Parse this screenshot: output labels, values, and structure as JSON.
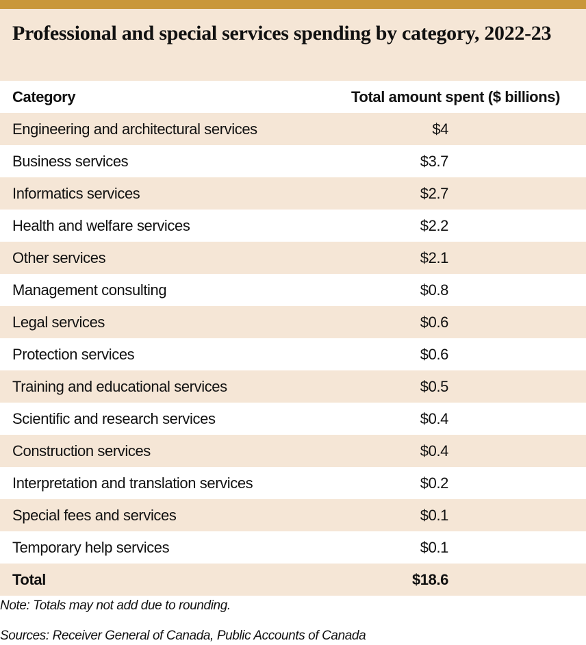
{
  "title": "Professional and special services spending by category, 2022-23",
  "colors": {
    "accent_bar": "#c9973a",
    "shade": "#f5e6d6"
  },
  "table": {
    "headers": [
      "Category",
      "Total amount spent ($ billions)"
    ],
    "rows": [
      {
        "category": "Engineering and architectural services",
        "value": "$4"
      },
      {
        "category": "Business services",
        "value": "$3.7"
      },
      {
        "category": "Informatics services",
        "value": "$2.7"
      },
      {
        "category": "Health and welfare services",
        "value": "$2.2"
      },
      {
        "category": "Other services",
        "value": "$2.1"
      },
      {
        "category": "Management consulting",
        "value": "$0.8"
      },
      {
        "category": "Legal services",
        "value": "$0.6"
      },
      {
        "category": "Protection services",
        "value": "$0.6"
      },
      {
        "category": "Training and educational services",
        "value": "$0.5"
      },
      {
        "category": "Scientific and research services",
        "value": "$0.4"
      },
      {
        "category": "Construction services",
        "value": "$0.4"
      },
      {
        "category": "Interpretation and translation services",
        "value": "$0.2"
      },
      {
        "category": "Special fees and services",
        "value": "$0.1"
      },
      {
        "category": "Temporary help services",
        "value": "$0.1"
      }
    ],
    "total": {
      "category": "Total",
      "value": "$18.6"
    }
  },
  "note": "Note: Totals may not add due to rounding.",
  "sources": "Sources: Receiver General of Canada, Public Accounts of Canada"
}
